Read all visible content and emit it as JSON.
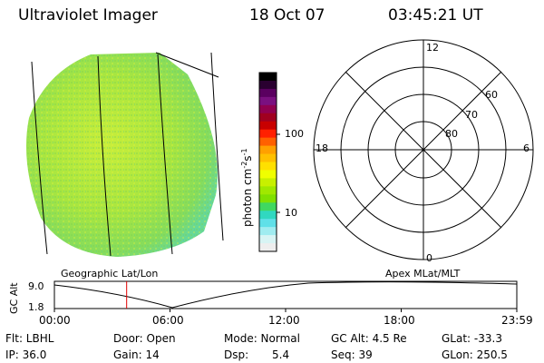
{
  "header": {
    "instrument": "Ultraviolet Imager",
    "date": "18 Oct 07",
    "time": "03:45:21 UT"
  },
  "colorbar": {
    "label": "photon cm",
    "label_sup1": "-2",
    "label_mid": "s",
    "label_sup2": "-1",
    "tick_100": "100",
    "tick_10": "10",
    "colors": [
      "#000000",
      "#2a0030",
      "#5a0060",
      "#7a1080",
      "#900050",
      "#a00020",
      "#c80000",
      "#ff2000",
      "#ff6000",
      "#ffa000",
      "#ffc000",
      "#ffe000",
      "#f0ff00",
      "#c8f000",
      "#a0e800",
      "#80e000",
      "#40d860",
      "#30d8c0",
      "#60e0e8",
      "#a0ecf0",
      "#d8f4f4",
      "#eeeeee"
    ]
  },
  "polar_plot": {
    "labels": {
      "top": "12",
      "bottom": "0",
      "left": "18",
      "right": "6"
    },
    "lat_labels": [
      "80",
      "70",
      "60"
    ]
  },
  "orbit_plot": {
    "ylabel": "GC Alt",
    "yticks": [
      "9.0",
      "1.8"
    ],
    "left_title": "Geographic Lat/Lon",
    "right_title": "Apex MLat/MLT",
    "xticks": [
      "00:00",
      "06:00",
      "12:00",
      "18:00",
      "23:59"
    ],
    "marker_time_hours": 3.75
  },
  "info": {
    "filter_label": "Flt: LBHL",
    "door_label": "Door: Open",
    "mode_label": "Mode: Normal",
    "gcalt_label": "GC Alt: 4.5 Re",
    "glat_label": "GLat: -33.3",
    "ip_label": "IP: 36.0",
    "gain_label": "Gain: 14",
    "dsp_label": "Dsp:",
    "dsp_value": "5.4",
    "seq_label": "Seq: 39",
    "glon_label": "GLon: 250.5"
  }
}
